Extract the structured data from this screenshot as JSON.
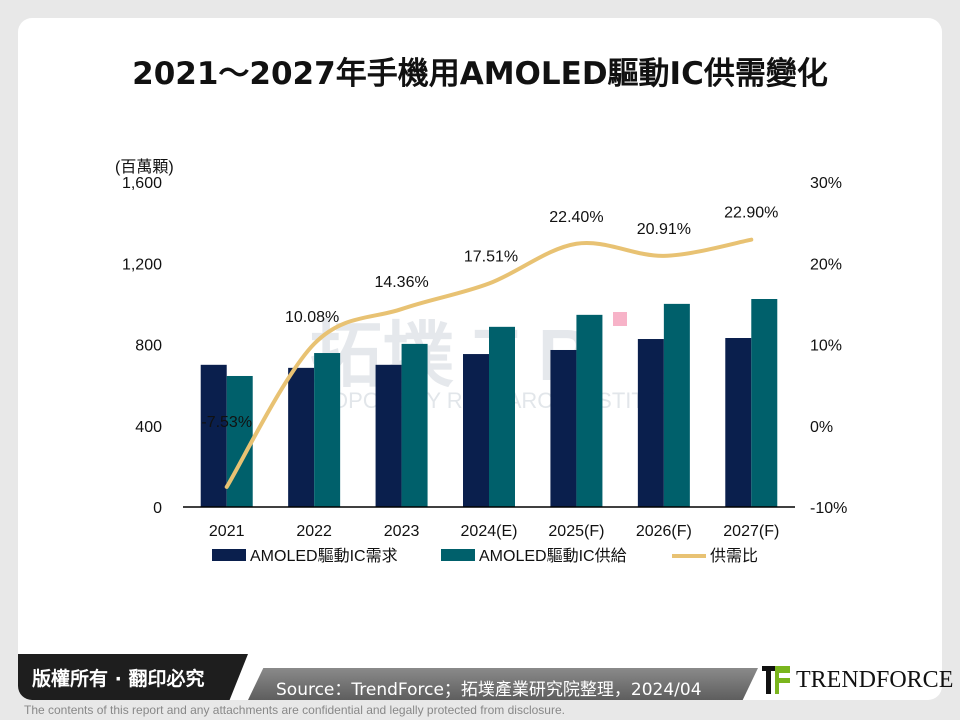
{
  "title": "2021～2027年手機用AMOLED驅動IC供需變化",
  "chart_data": {
    "type": "bar+line",
    "title": "2021～2027年手機用AMOLED驅動IC供需變化",
    "ylabel": "(百萬顆)",
    "categories": [
      "2021",
      "2022",
      "2023",
      "2024(E)",
      "2025(F)",
      "2026(F)",
      "2027(F)"
    ],
    "ylim": [
      0,
      1600
    ],
    "yticks": [
      "0",
      "400",
      "800",
      "1,200",
      "1,600"
    ],
    "y2lim": [
      -10,
      30
    ],
    "y2ticks": [
      "-10%",
      "0%",
      "10%",
      "20%",
      "30%"
    ],
    "series": [
      {
        "name": "AMOLED驅動IC需求",
        "type": "bar",
        "color": "#0a1f4d",
        "values": [
          700,
          685,
          700,
          753,
          773,
          827,
          832
        ]
      },
      {
        "name": "AMOLED驅動IC供給",
        "type": "bar",
        "color": "#00606b",
        "values": [
          645,
          758,
          803,
          887,
          946,
          1000,
          1024
        ]
      },
      {
        "name": "供需比",
        "type": "line",
        "axis": "right",
        "color": "#e8c273",
        "values": [
          -7.53,
          10.08,
          14.36,
          17.51,
          22.4,
          20.91,
          22.9
        ],
        "labels": [
          "-7.53%",
          "10.08%",
          "14.36%",
          "17.51%",
          "22.40%",
          "20.91%",
          "22.90%"
        ]
      }
    ],
    "legend": "bottom",
    "grid": false
  },
  "watermark": "拓墣 TRI TOPOLOGY RESEARCH INSTITUTE",
  "footer": {
    "copyright": "版權所有 · 翻印必究",
    "source": "Source：TrendForce；拓墣產業研究院整理，2024/04",
    "logo": "TRENDFORCE",
    "disclaimer": "The contents of this report and any attachments are confidential and legally protected from disclosure."
  }
}
